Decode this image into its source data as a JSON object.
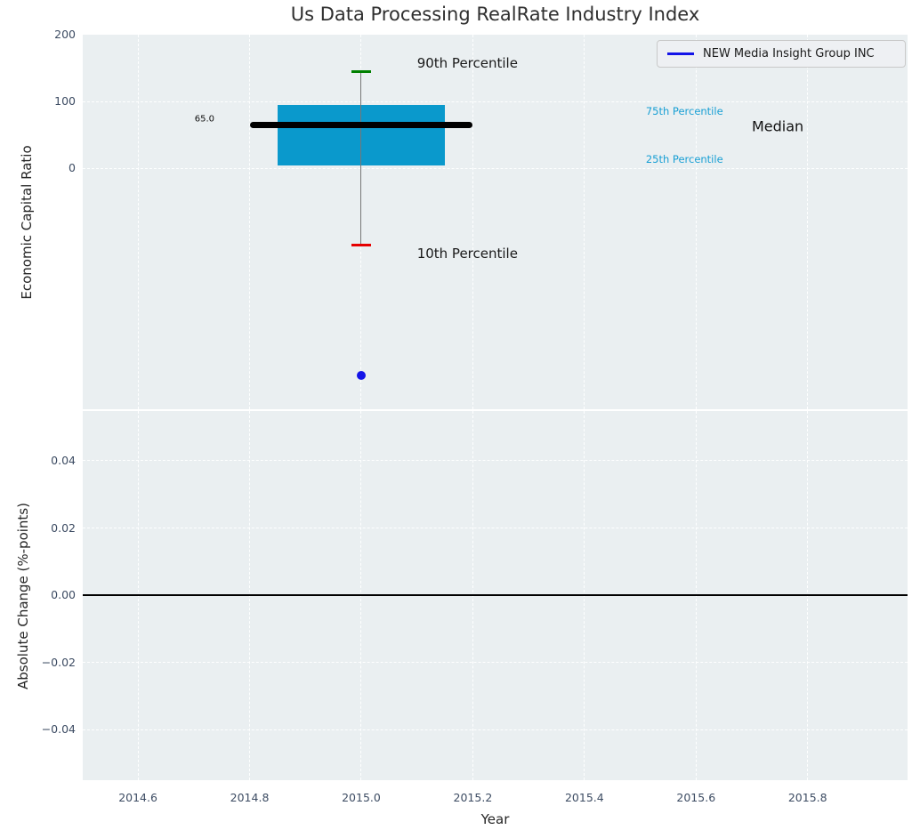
{
  "title": "Us Data Processing RealRate Industry Index",
  "legend": {
    "label": "NEW Media Insight Group INC",
    "line_color": "#1414e8"
  },
  "colors": {
    "plot_bg": "#eaeff1",
    "grid": "#ffffff",
    "tick_label": "#3d4c63",
    "box_fill": "#0a99cc",
    "whisker": "#777777",
    "cap_90th": "#008000",
    "cap_10th": "#e60000",
    "median_line": "#000000",
    "company_point": "#1414e8",
    "percentile_text": "#189fd4",
    "zero_line": "#000000"
  },
  "chart_data": [
    {
      "type": "boxplot",
      "ylabel": "Economic Capital Ratio",
      "xlim": [
        2014.501,
        2015.979
      ],
      "ylim": [
        -360,
        200
      ],
      "yticks": [
        {
          "v": 200,
          "label": "200",
          "grid": false
        },
        {
          "v": 100,
          "label": "100",
          "grid": true
        },
        {
          "v": 0,
          "label": "0",
          "grid": true
        }
      ],
      "xticks": [
        {
          "v": 2014.6,
          "label": "2014.6"
        },
        {
          "v": 2014.8,
          "label": "2014.8"
        },
        {
          "v": 2015.0,
          "label": "2015.0"
        },
        {
          "v": 2015.2,
          "label": "2015.2"
        },
        {
          "v": 2015.4,
          "label": "2015.4"
        },
        {
          "v": 2015.6,
          "label": "2015.6"
        },
        {
          "v": 2015.8,
          "label": "2015.8"
        }
      ],
      "show_xtick_labels": false,
      "box": {
        "x_center": 2015.0,
        "box_left": 2014.85,
        "box_right": 2015.15,
        "median_left": 2014.8,
        "median_right": 2015.2,
        "p90": 145,
        "p75": 95,
        "median": 65,
        "p25": 5,
        "p10": -115,
        "cap_halfwidth_years": 0.0175,
        "median_value_label": "65.0"
      },
      "company_point": {
        "x": 2015.0,
        "y": -310
      },
      "annotations": [
        {
          "text": "90th Percentile",
          "x": 2015.1,
          "y": 157,
          "color": "#1a1a1a",
          "size": 15,
          "align": "left"
        },
        {
          "text": "10th Percentile",
          "x": 2015.1,
          "y": -127,
          "color": "#1a1a1a",
          "size": 15,
          "align": "left"
        },
        {
          "text": "75th Percentile",
          "x": 2015.51,
          "y": 86,
          "color": "#189fd4",
          "size": 11.5,
          "align": "left"
        },
        {
          "text": "25th Percentile",
          "x": 2015.51,
          "y": 14,
          "color": "#189fd4",
          "size": 11.5,
          "align": "left"
        },
        {
          "text": "Median",
          "x": 2015.7,
          "y": 63,
          "color": "#111111",
          "size": 16,
          "align": "left"
        },
        {
          "text": "65.0",
          "x": 2014.737,
          "y": 74,
          "color": "#111111",
          "size": 10,
          "align": "right"
        }
      ]
    },
    {
      "type": "line",
      "ylabel": "Absolute Change (%-points)",
      "xlabel": "Year",
      "xlim": [
        2014.501,
        2015.979
      ],
      "ylim": [
        -0.055,
        0.0548
      ],
      "yticks": [
        {
          "v": 0.04,
          "label": "0.04",
          "grid": true
        },
        {
          "v": 0.02,
          "label": "0.02",
          "grid": true
        },
        {
          "v": 0.0,
          "label": "0.00",
          "grid": true
        },
        {
          "v": -0.02,
          "label": "−0.02",
          "grid": true
        },
        {
          "v": -0.04,
          "label": "−0.04",
          "grid": true
        }
      ],
      "xticks": [
        {
          "v": 2014.6,
          "label": "2014.6"
        },
        {
          "v": 2014.8,
          "label": "2014.8"
        },
        {
          "v": 2015.0,
          "label": "2015.0"
        },
        {
          "v": 2015.2,
          "label": "2015.2"
        },
        {
          "v": 2015.4,
          "label": "2015.4"
        },
        {
          "v": 2015.6,
          "label": "2015.6"
        },
        {
          "v": 2015.8,
          "label": "2015.8"
        }
      ],
      "show_xtick_labels": true,
      "zero_line": {
        "y": 0.0
      }
    }
  ]
}
